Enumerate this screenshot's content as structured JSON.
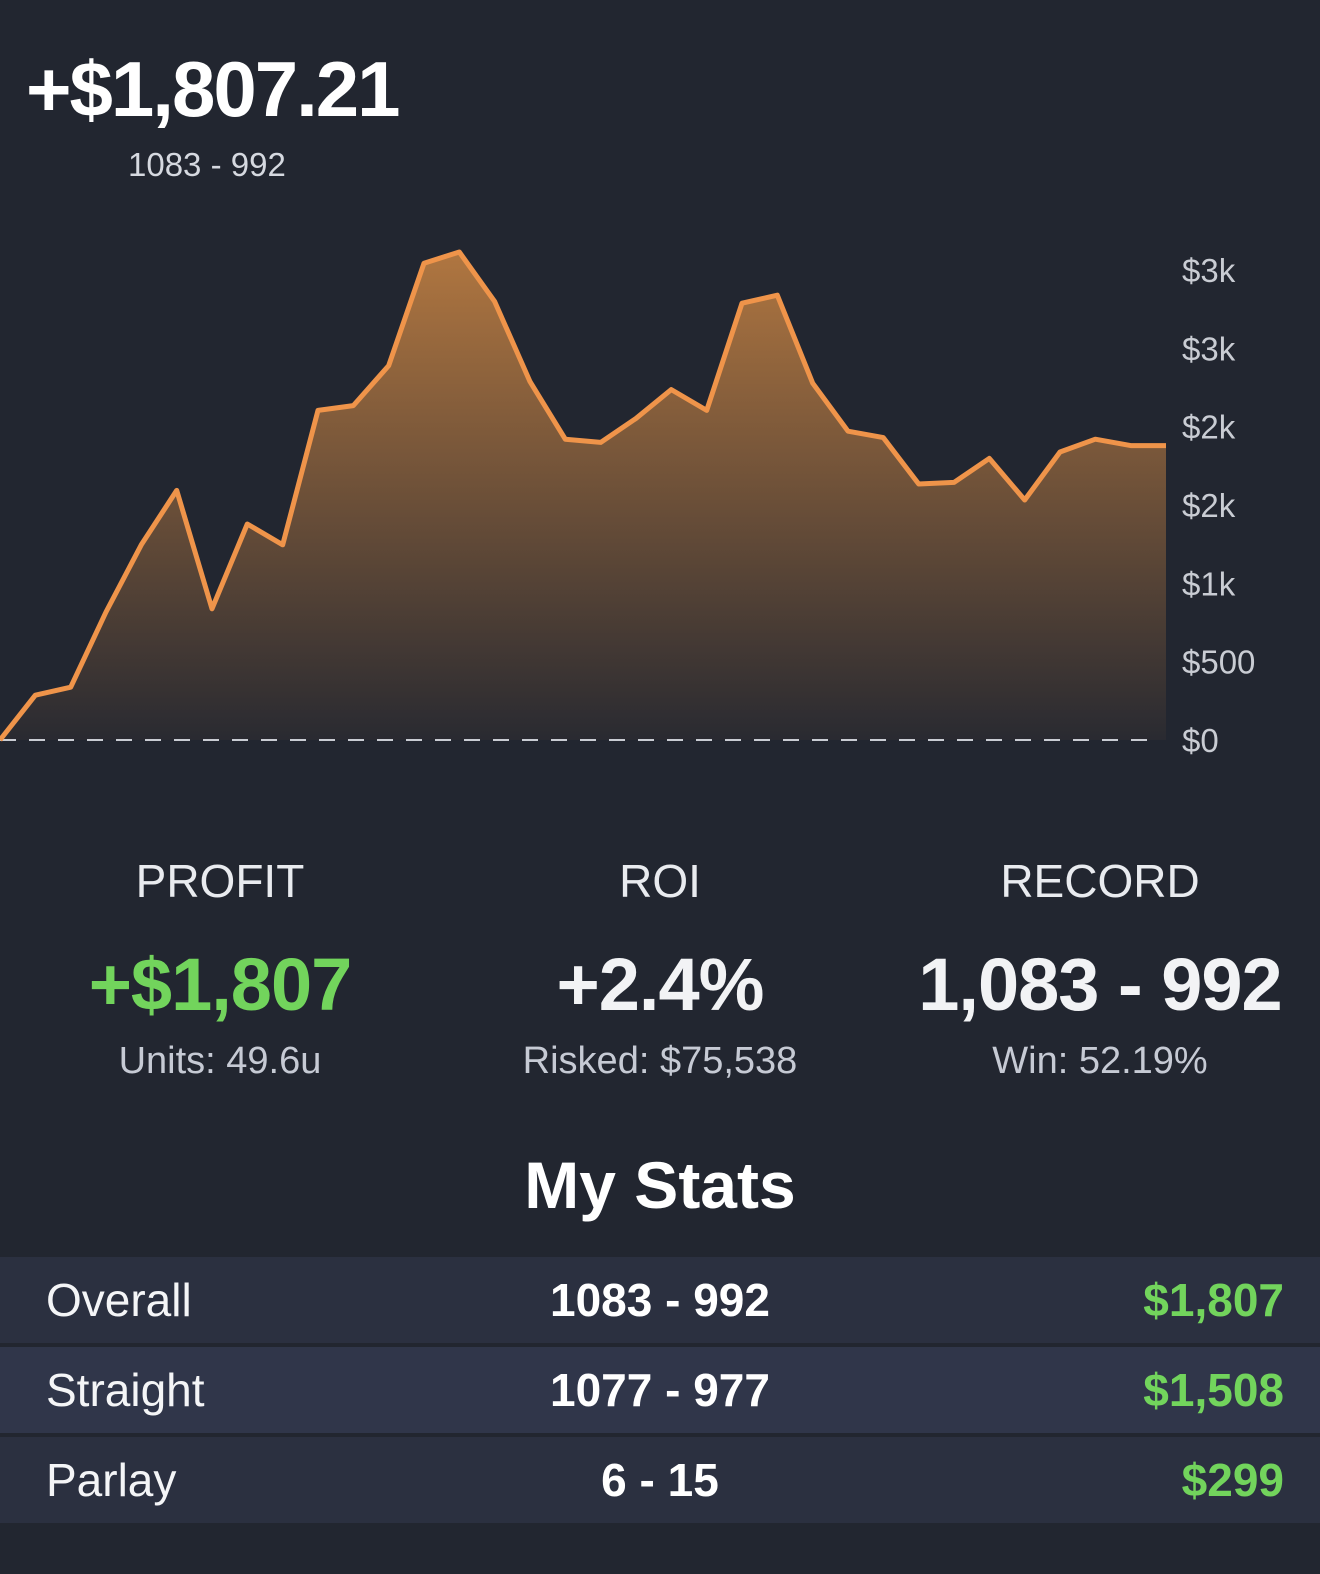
{
  "header": {
    "profit": "+$1,807.21",
    "record": "1083 - 992"
  },
  "chart_data": {
    "type": "area",
    "title": "",
    "xlabel": "",
    "ylabel": "",
    "y_tick_labels": [
      "$3k",
      "$3k",
      "$2k",
      "$2k",
      "$1k",
      "$500",
      "$0"
    ],
    "y_tick_values": [
      3000,
      2500,
      2000,
      1500,
      1000,
      500,
      0
    ],
    "ylim": [
      0,
      3000
    ],
    "grid": false,
    "baseline_dashed": true,
    "line_color": "#ef944a",
    "fill_color": "#b07640",
    "values": [
      0,
      280,
      330,
      800,
      1220,
      1560,
      820,
      1350,
      1220,
      2060,
      2090,
      2340,
      2980,
      3050,
      2740,
      2240,
      1880,
      1860,
      2010,
      2190,
      2060,
      2730,
      2780,
      2230,
      1930,
      1890,
      1600,
      1610,
      1760,
      1500,
      1800,
      1880,
      1840,
      1840
    ]
  },
  "summary": {
    "profit": {
      "label": "PROFIT",
      "value": "+$1,807",
      "sub": "Units: 49.6u"
    },
    "roi": {
      "label": "ROI",
      "value": "+2.4%",
      "sub": "Risked: $75,538"
    },
    "record": {
      "label": "RECORD",
      "value": "1,083 - 992",
      "sub": "Win: 52.19%"
    }
  },
  "stats": {
    "title": "My Stats",
    "rows": [
      {
        "name": "Overall",
        "record": "1083 - 992",
        "amount": "$1,807"
      },
      {
        "name": "Straight",
        "record": "1077 - 977",
        "amount": "$1,508"
      },
      {
        "name": "Parlay",
        "record": "6 - 15",
        "amount": "$299"
      }
    ]
  },
  "colors": {
    "background": "#222630",
    "positive": "#72d45c",
    "accent_line": "#ef944a"
  }
}
